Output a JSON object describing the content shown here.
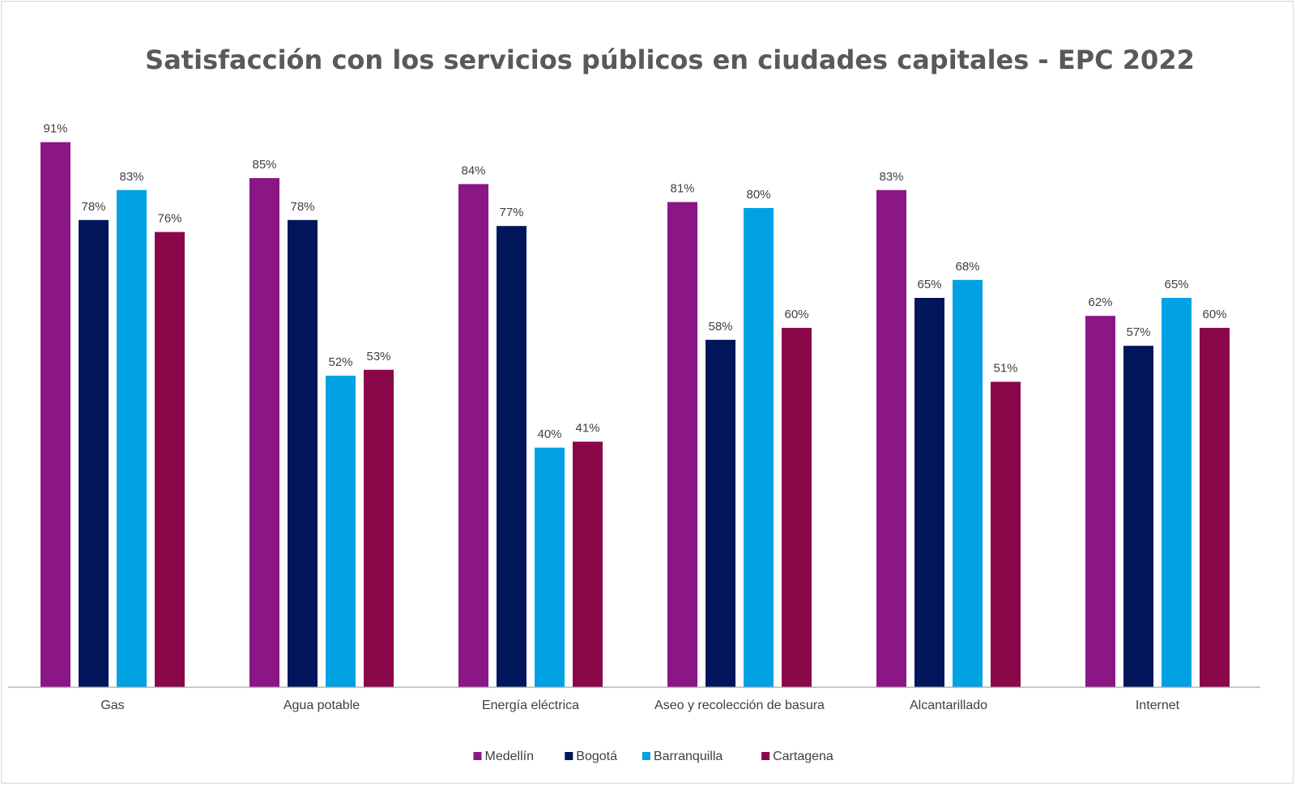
{
  "chart_data": {
    "type": "bar",
    "title": "Satisfacción con los servicios públicos en ciudades capitales - EPC 2022",
    "xlabel": "",
    "ylabel": "",
    "ylim": [
      0,
      100
    ],
    "grid": false,
    "legend_position": "bottom-center",
    "value_format": "percent",
    "categories": [
      "Gas",
      "Agua potable",
      "Energía eléctrica",
      "Aseo y recolección de basura",
      "Alcantarillado",
      "Internet"
    ],
    "series": [
      {
        "name": "Medellín",
        "color": "#8b1786",
        "values": [
          91,
          85,
          84,
          81,
          83,
          62
        ]
      },
      {
        "name": "Bogotá",
        "color": "#00155a",
        "values": [
          78,
          78,
          77,
          58,
          65,
          57
        ]
      },
      {
        "name": "Barranquilla",
        "color": "#00a2e4",
        "values": [
          83,
          52,
          40,
          80,
          68,
          65
        ]
      },
      {
        "name": "Cartagena",
        "color": "#8a084a",
        "values": [
          76,
          53,
          41,
          60,
          51,
          60
        ]
      }
    ]
  }
}
